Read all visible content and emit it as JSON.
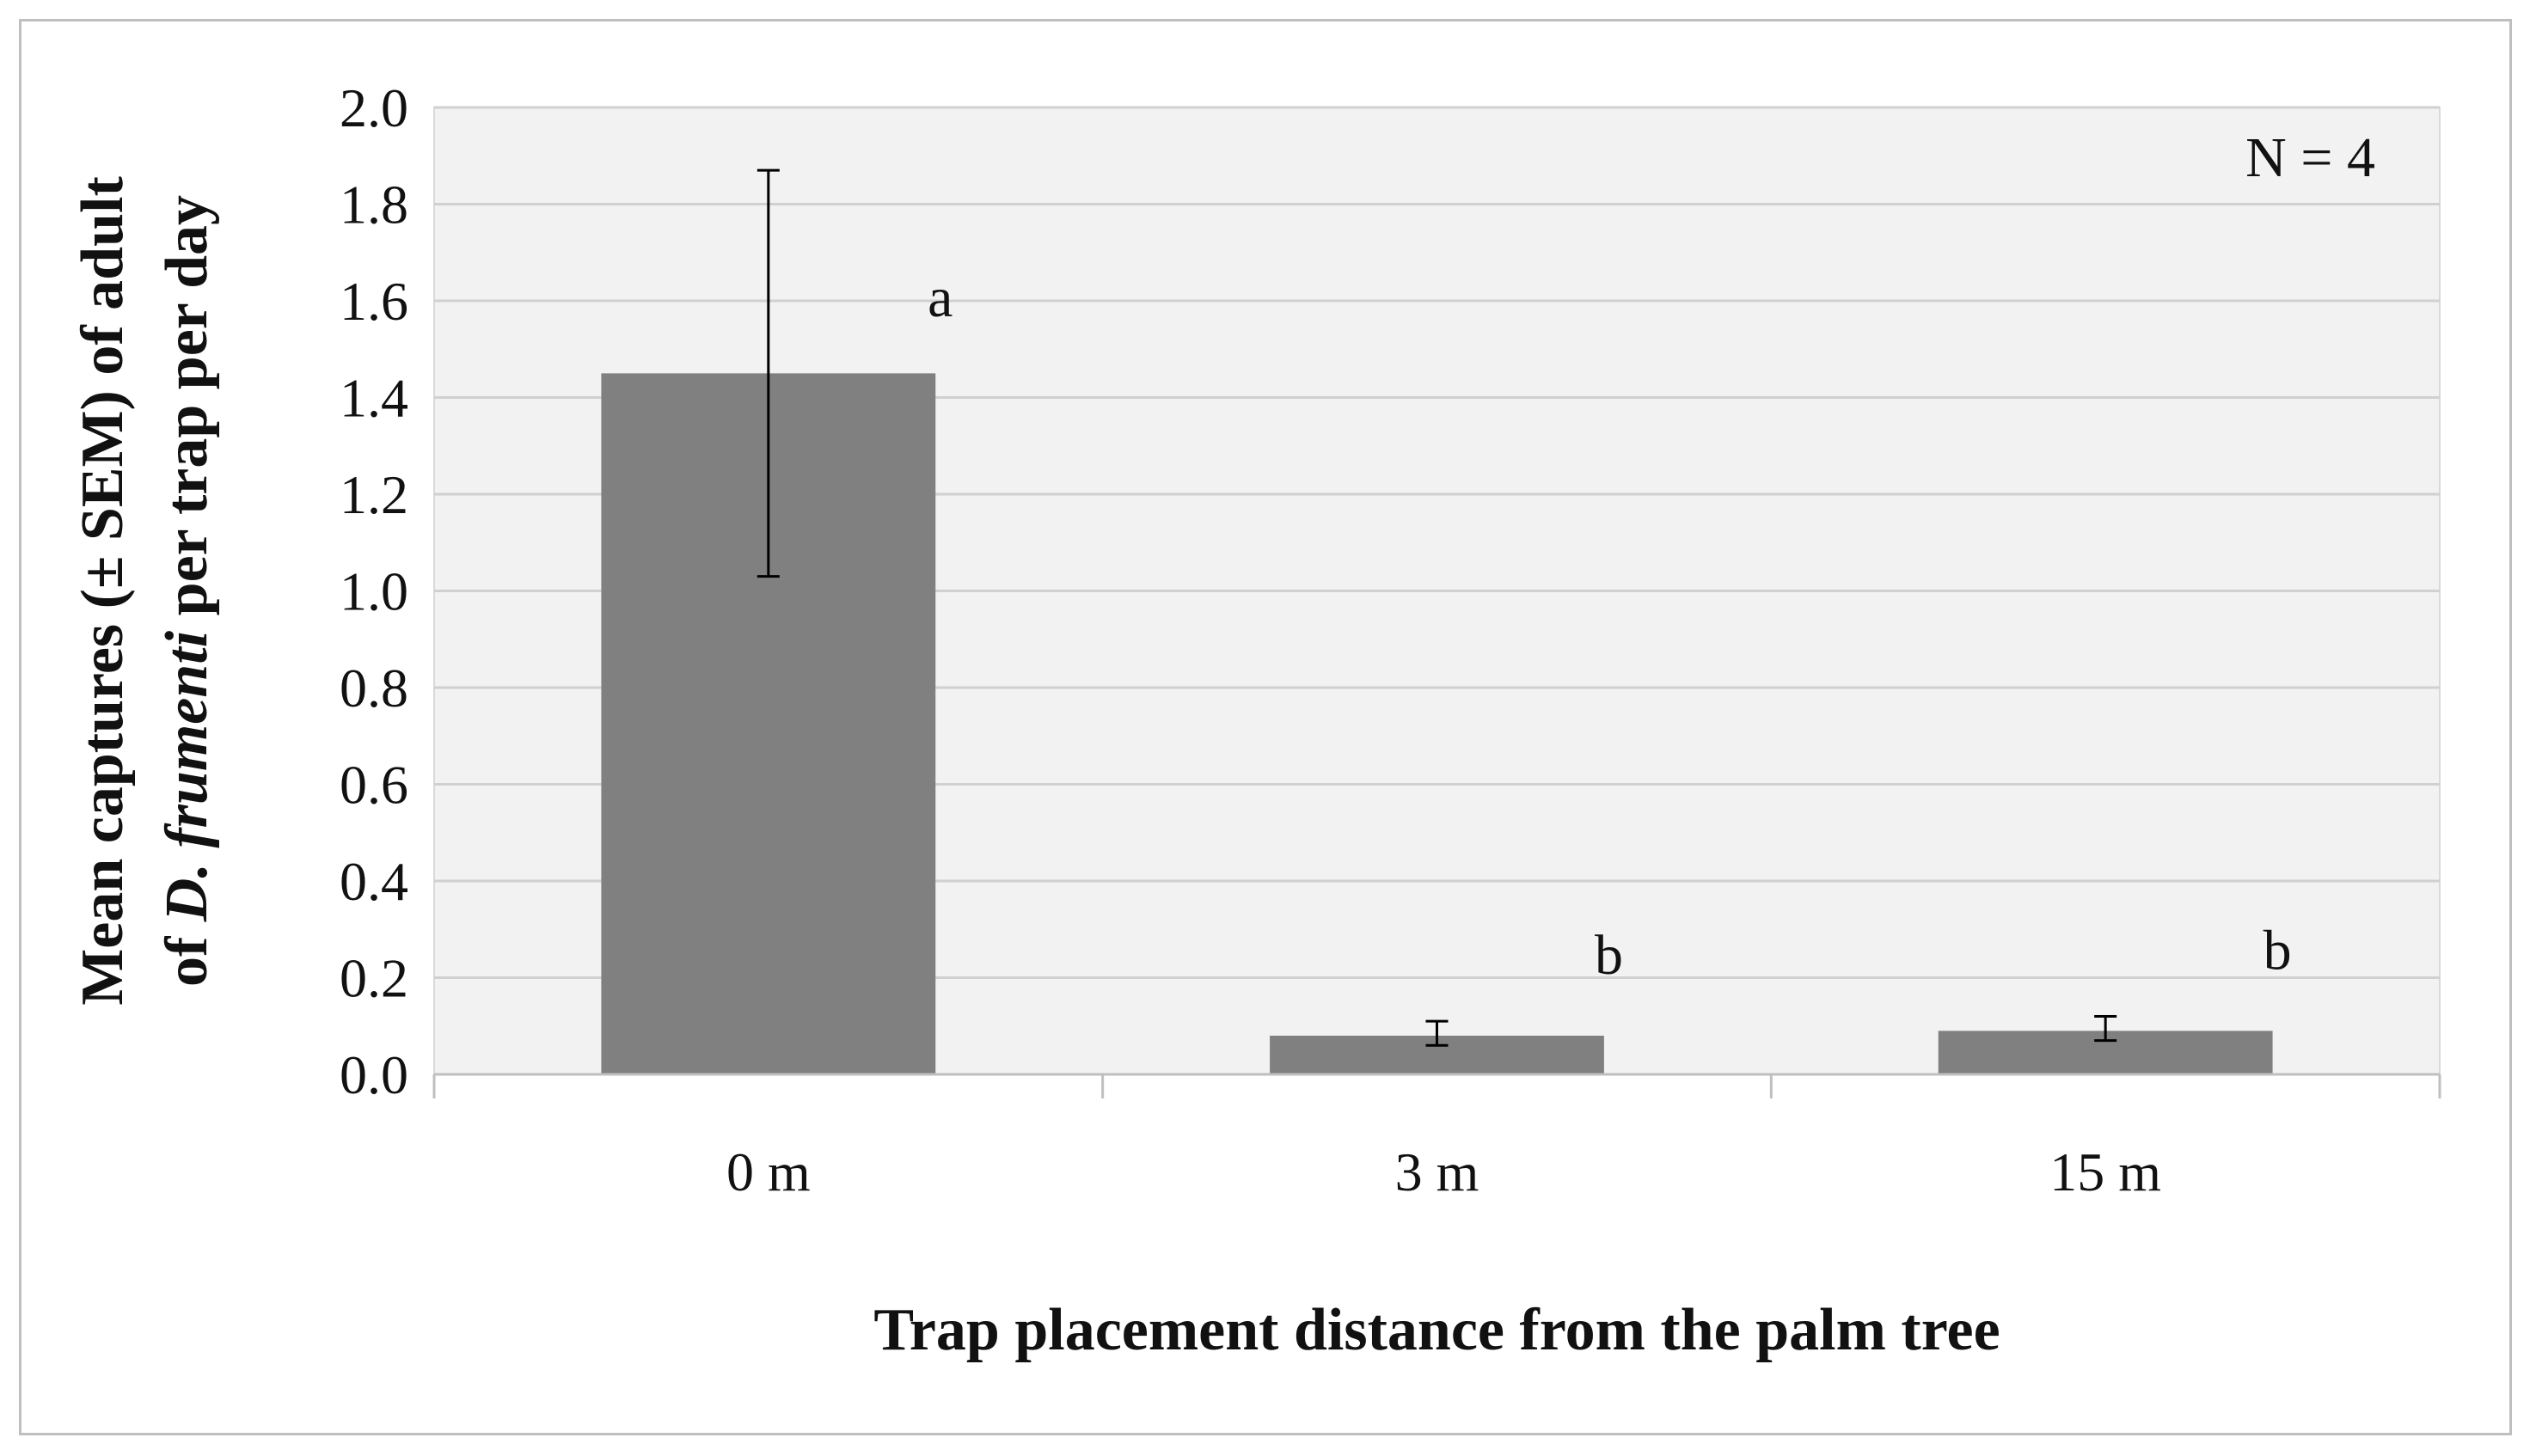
{
  "chart_data": {
    "type": "bar",
    "categories": [
      "0 m",
      "3 m",
      "15 m"
    ],
    "values": [
      1.45,
      0.08,
      0.09
    ],
    "error_upper": [
      1.87,
      0.11,
      0.12
    ],
    "error_lower": [
      1.03,
      0.06,
      0.07
    ],
    "letters": [
      "a",
      "b",
      "b"
    ],
    "ylabel_line1": "Mean captures (± SEM) of adult",
    "ylabel_line2_prefix": "of ",
    "ylabel_line2_italic": "D. frumenti",
    "ylabel_line2_suffix": " per trap per day",
    "xlabel": "Trap placement distance  from the palm tree",
    "annotation": "N = 4",
    "ylim": [
      0,
      2.0
    ],
    "yticks": [
      "0.0",
      "0.2",
      "0.4",
      "0.6",
      "0.8",
      "1.0",
      "1.2",
      "1.4",
      "1.6",
      "1.8",
      "2.0"
    ],
    "grid": true,
    "colors": {
      "bar": "#808080",
      "plot_background": "#f2f2f2",
      "gridline": "#d0d0d0"
    }
  }
}
